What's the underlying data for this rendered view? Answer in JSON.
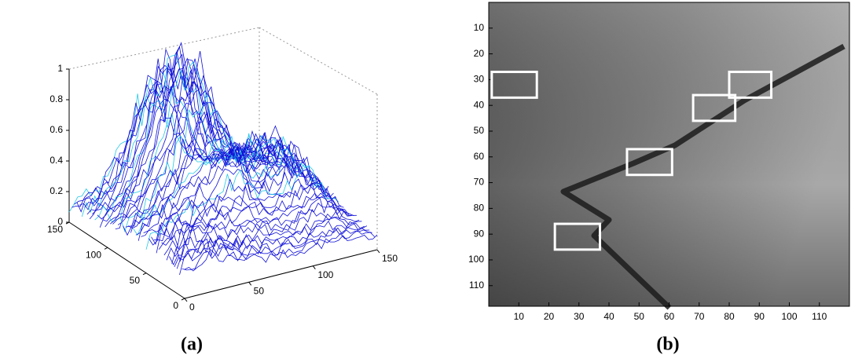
{
  "panel_a": {
    "caption": "(a)",
    "zticks": [
      0,
      0.2,
      0.4,
      0.6,
      0.8,
      1
    ],
    "yticks": [
      0,
      50,
      100,
      150
    ],
    "xticks": [
      0,
      50,
      100,
      150
    ]
  },
  "panel_b": {
    "caption": "(b)",
    "xlim": [
      0,
      120
    ],
    "ylim": [
      0,
      118
    ],
    "xticks": [
      10,
      20,
      30,
      40,
      50,
      60,
      70,
      80,
      90,
      100,
      110
    ],
    "yticks": [
      10,
      20,
      30,
      40,
      50,
      60,
      70,
      80,
      90,
      100,
      110
    ],
    "boxes": [
      {
        "x": [
          1,
          16
        ],
        "y": [
          27,
          37
        ]
      },
      {
        "x": [
          80,
          94
        ],
        "y": [
          27,
          37
        ]
      },
      {
        "x": [
          68,
          82
        ],
        "y": [
          36,
          46
        ]
      },
      {
        "x": [
          46,
          61
        ],
        "y": [
          57,
          67
        ]
      },
      {
        "x": [
          22,
          37
        ],
        "y": [
          86,
          96
        ]
      }
    ]
  }
}
